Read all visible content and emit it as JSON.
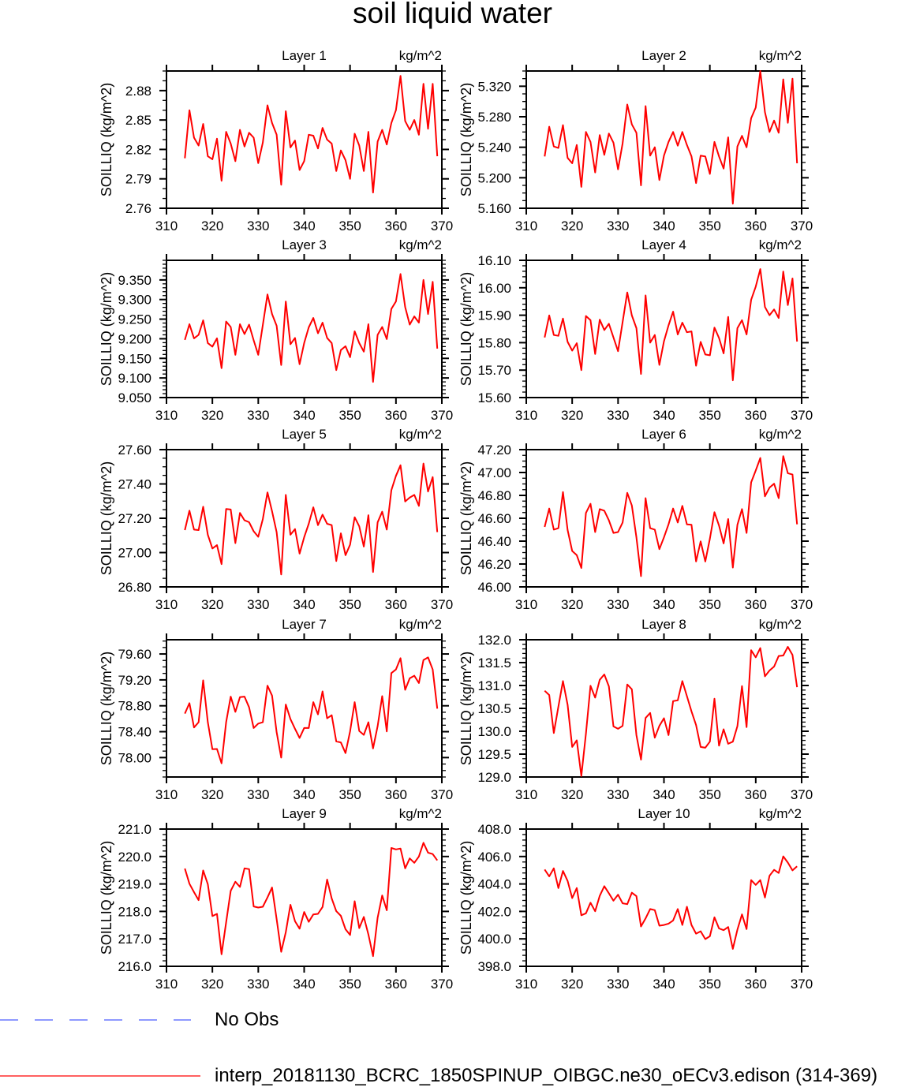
{
  "title": "soil liquid water",
  "legend": {
    "items": [
      {
        "label": "No Obs",
        "color": "#4a5cff",
        "style": "dashed"
      },
      {
        "label": "interp_20181130_BCRC_1850SPINUP_OIBGC.ne30_oECv3.edison (314-369)",
        "color": "#ff0000",
        "style": "solid"
      }
    ]
  },
  "chart_data": [
    {
      "type": "line",
      "title": "Layer 1",
      "units": "kg/m^2",
      "ylabel": "SOILLIQ  (kg/m^2)",
      "xlim": [
        310,
        370
      ],
      "xticks": [
        "310",
        "320",
        "330",
        "340",
        "350",
        "360",
        "370"
      ],
      "ylim": [
        2.76,
        2.9
      ],
      "yticks": [
        "2.76",
        "2.79",
        "2.82",
        "2.85",
        "2.88"
      ],
      "yminor": 0.01,
      "x_start": 314,
      "values": [
        2.811,
        2.86,
        2.832,
        2.824,
        2.846,
        2.813,
        2.81,
        2.831,
        2.788,
        2.838,
        2.826,
        2.808,
        2.84,
        2.823,
        2.837,
        2.832,
        2.806,
        2.827,
        2.865,
        2.847,
        2.835,
        2.784,
        2.859,
        2.822,
        2.829,
        2.799,
        2.808,
        2.835,
        2.834,
        2.821,
        2.842,
        2.83,
        2.826,
        2.798,
        2.819,
        2.809,
        2.79,
        2.836,
        2.824,
        2.798,
        2.838,
        2.776,
        2.828,
        2.84,
        2.825,
        2.847,
        2.86,
        2.895,
        2.849,
        2.84,
        2.85,
        2.835,
        2.887,
        2.841,
        2.887,
        2.813
      ]
    },
    {
      "type": "line",
      "title": "Layer 2",
      "units": "kg/m^2",
      "ylabel": "SOILLIQ  (kg/m^2)",
      "xlim": [
        310,
        370
      ],
      "xticks": [
        "310",
        "320",
        "330",
        "340",
        "350",
        "360",
        "370"
      ],
      "ylim": [
        5.16,
        5.34
      ],
      "yticks": [
        "5.160",
        "5.200",
        "5.240",
        "5.280",
        "5.320"
      ],
      "yminor": 0.01,
      "x_start": 314,
      "values": [
        5.228,
        5.267,
        5.241,
        5.239,
        5.269,
        5.226,
        5.219,
        5.243,
        5.188,
        5.26,
        5.247,
        5.207,
        5.256,
        5.23,
        5.258,
        5.246,
        5.211,
        5.245,
        5.296,
        5.27,
        5.259,
        5.19,
        5.294,
        5.229,
        5.24,
        5.197,
        5.229,
        5.247,
        5.26,
        5.242,
        5.26,
        5.243,
        5.228,
        5.193,
        5.229,
        5.228,
        5.205,
        5.247,
        5.228,
        5.212,
        5.253,
        5.166,
        5.241,
        5.255,
        5.24,
        5.278,
        5.292,
        5.34,
        5.286,
        5.26,
        5.275,
        5.259,
        5.329,
        5.272,
        5.33,
        5.219
      ]
    },
    {
      "type": "line",
      "title": "Layer 3",
      "units": "kg/m^2",
      "ylabel": "SOILLIQ  (kg/m^2)",
      "xlim": [
        310,
        370
      ],
      "xticks": [
        "310",
        "320",
        "330",
        "340",
        "350",
        "360",
        "370"
      ],
      "ylim": [
        9.05,
        9.4
      ],
      "yticks": [
        "9.050",
        "9.100",
        "9.150",
        "9.200",
        "9.250",
        "9.300",
        "9.350"
      ],
      "yminor": 0.01,
      "x_start": 314,
      "values": [
        9.197,
        9.237,
        9.201,
        9.21,
        9.247,
        9.189,
        9.18,
        9.201,
        9.125,
        9.244,
        9.23,
        9.159,
        9.237,
        9.212,
        9.236,
        9.196,
        9.159,
        9.235,
        9.313,
        9.263,
        9.233,
        9.133,
        9.295,
        9.186,
        9.202,
        9.135,
        9.189,
        9.229,
        9.253,
        9.214,
        9.241,
        9.202,
        9.189,
        9.12,
        9.171,
        9.181,
        9.153,
        9.219,
        9.189,
        9.167,
        9.237,
        9.09,
        9.21,
        9.23,
        9.199,
        9.276,
        9.295,
        9.365,
        9.281,
        9.236,
        9.257,
        9.241,
        9.35,
        9.263,
        9.345,
        9.175
      ]
    },
    {
      "type": "line",
      "title": "Layer 4",
      "units": "kg/m^2",
      "ylabel": "SOILLIQ  (kg/m^2)",
      "xlim": [
        310,
        370
      ],
      "xticks": [
        "310",
        "320",
        "330",
        "340",
        "350",
        "360",
        "370"
      ],
      "ylim": [
        15.6,
        16.1
      ],
      "yticks": [
        "15.60",
        "15.70",
        "15.80",
        "15.90",
        "16.00",
        "16.10"
      ],
      "yminor": 0.02,
      "x_start": 314,
      "values": [
        15.819,
        15.899,
        15.828,
        15.825,
        15.888,
        15.803,
        15.771,
        15.798,
        15.7,
        15.897,
        15.882,
        15.759,
        15.884,
        15.846,
        15.869,
        15.819,
        15.769,
        15.875,
        15.983,
        15.899,
        15.853,
        15.686,
        15.972,
        15.8,
        15.828,
        15.719,
        15.805,
        15.863,
        15.913,
        15.83,
        15.873,
        15.838,
        15.841,
        15.716,
        15.803,
        15.757,
        15.754,
        15.855,
        15.817,
        15.761,
        15.894,
        15.663,
        15.853,
        15.882,
        15.83,
        15.956,
        16.004,
        16.068,
        15.93,
        15.9,
        15.921,
        15.89,
        16.059,
        15.937,
        16.034,
        15.804
      ]
    },
    {
      "type": "line",
      "title": "Layer 5",
      "units": "kg/m^2",
      "ylabel": "SOILLIQ  (kg/m^2)",
      "xlim": [
        310,
        370
      ],
      "xticks": [
        "310",
        "320",
        "330",
        "340",
        "350",
        "360",
        "370"
      ],
      "ylim": [
        26.8,
        27.6
      ],
      "yticks": [
        "26.80",
        "27.00",
        "27.20",
        "27.40",
        "27.60"
      ],
      "yminor": 0.05,
      "x_start": 314,
      "values": [
        27.131,
        27.244,
        27.134,
        27.131,
        27.267,
        27.104,
        27.024,
        27.043,
        26.933,
        27.254,
        27.251,
        27.055,
        27.231,
        27.188,
        27.177,
        27.124,
        27.092,
        27.195,
        27.351,
        27.241,
        27.119,
        26.872,
        27.336,
        27.104,
        27.137,
        26.994,
        27.089,
        27.168,
        27.264,
        27.16,
        27.221,
        27.168,
        27.16,
        26.951,
        27.112,
        26.985,
        27.046,
        27.206,
        27.153,
        27.035,
        27.218,
        26.887,
        27.176,
        27.238,
        27.134,
        27.363,
        27.447,
        27.509,
        27.298,
        27.321,
        27.336,
        27.272,
        27.519,
        27.356,
        27.44,
        27.119
      ]
    },
    {
      "type": "line",
      "title": "Layer 6",
      "units": "kg/m^2",
      "ylabel": "SOILLIQ  (kg/m^2)",
      "xlim": [
        310,
        370
      ],
      "xticks": [
        "310",
        "320",
        "330",
        "340",
        "350",
        "360",
        "370"
      ],
      "ylim": [
        46.0,
        47.2
      ],
      "yticks": [
        "46.00",
        "46.20",
        "46.40",
        "46.60",
        "46.80",
        "47.00",
        "47.20"
      ],
      "yminor": 0.05,
      "x_start": 314,
      "values": [
        46.524,
        46.685,
        46.501,
        46.513,
        46.829,
        46.497,
        46.314,
        46.277,
        46.165,
        46.646,
        46.726,
        46.479,
        46.68,
        46.666,
        46.582,
        46.472,
        46.479,
        46.563,
        46.822,
        46.712,
        46.433,
        46.094,
        46.776,
        46.513,
        46.501,
        46.33,
        46.433,
        46.547,
        46.685,
        46.563,
        46.708,
        46.547,
        46.543,
        46.222,
        46.398,
        46.222,
        46.421,
        46.653,
        46.536,
        46.38,
        46.593,
        46.169,
        46.543,
        46.68,
        46.472,
        46.914,
        47.017,
        47.127,
        46.792,
        46.868,
        46.902,
        46.776,
        47.143,
        46.994,
        46.982,
        46.547
      ]
    },
    {
      "type": "line",
      "title": "Layer 7",
      "units": "kg/m^2",
      "ylabel": "SOILLIQ  (kg/m^2)",
      "xlim": [
        310,
        370
      ],
      "xticks": [
        "310",
        "320",
        "330",
        "340",
        "350",
        "360",
        "370"
      ],
      "ylim": [
        77.7,
        79.82
      ],
      "yticks": [
        "78.00",
        "78.40",
        "78.80",
        "79.20",
        "79.60"
      ],
      "yminor": 0.1,
      "x_start": 314,
      "values": [
        78.679,
        78.84,
        78.465,
        78.545,
        79.192,
        78.545,
        78.129,
        78.133,
        77.911,
        78.545,
        78.941,
        78.707,
        78.933,
        78.941,
        78.776,
        78.457,
        78.525,
        78.545,
        79.111,
        78.957,
        78.392,
        78.0,
        78.82,
        78.594,
        78.444,
        78.303,
        78.457,
        78.457,
        78.856,
        78.667,
        79.022,
        78.606,
        78.654,
        78.25,
        78.234,
        78.069,
        78.404,
        78.856,
        78.412,
        78.351,
        78.545,
        78.141,
        78.485,
        78.949,
        78.404,
        79.305,
        79.361,
        79.535,
        79.046,
        79.224,
        79.265,
        79.151,
        79.507,
        79.547,
        79.361,
        78.755
      ]
    },
    {
      "type": "line",
      "title": "Layer 8",
      "units": "kg/m^2",
      "ylabel": "SOILLIQ  (kg/m^2)",
      "xlim": [
        310,
        370
      ],
      "xticks": [
        "310",
        "320",
        "330",
        "340",
        "350",
        "360",
        "370"
      ],
      "ylim": [
        129.0,
        132.0
      ],
      "yticks": [
        "129.0",
        "129.5",
        "130.0",
        "130.5",
        "131.0",
        "131.5",
        "132.0"
      ],
      "yminor": 0.1,
      "x_start": 314,
      "values": [
        130.884,
        130.791,
        129.962,
        130.538,
        131.097,
        130.578,
        129.657,
        129.801,
        129.023,
        129.945,
        130.993,
        130.734,
        131.125,
        131.241,
        130.981,
        130.106,
        130.054,
        130.117,
        131.022,
        130.918,
        129.916,
        129.38,
        130.29,
        130.4,
        129.858,
        130.117,
        130.284,
        129.916,
        130.659,
        130.676,
        131.097,
        130.768,
        130.434,
        130.135,
        129.657,
        129.639,
        129.772,
        130.711,
        129.685,
        130.043,
        129.726,
        129.772,
        130.112,
        130.987,
        130.089,
        131.771,
        131.615,
        131.817,
        131.2,
        131.327,
        131.413,
        131.644,
        131.655,
        131.845,
        131.667,
        130.964
      ]
    },
    {
      "type": "line",
      "title": "Layer 9",
      "units": "kg/m^2",
      "ylabel": "SOILLIQ  (kg/m^2)",
      "xlim": [
        310,
        370
      ],
      "xticks": [
        "310",
        "320",
        "330",
        "340",
        "350",
        "360",
        "370"
      ],
      "ylim": [
        216.0,
        221.0
      ],
      "yticks": [
        "216.0",
        "217.0",
        "218.0",
        "219.0",
        "220.0",
        "221.0"
      ],
      "yminor": 0.2,
      "x_start": 314,
      "values": [
        219.56,
        219.01,
        218.7,
        218.41,
        219.49,
        218.99,
        217.83,
        217.91,
        216.44,
        217.6,
        218.75,
        219.08,
        218.89,
        219.57,
        219.54,
        218.18,
        218.14,
        218.17,
        218.51,
        218.87,
        217.72,
        216.53,
        217.24,
        218.24,
        217.64,
        217.37,
        217.98,
        217.62,
        217.89,
        217.91,
        218.16,
        219.16,
        218.47,
        218.01,
        217.84,
        217.35,
        217.14,
        218.37,
        217.39,
        217.8,
        217.16,
        216.37,
        217.77,
        218.58,
        218.04,
        220.31,
        220.26,
        220.29,
        219.57,
        219.93,
        219.77,
        220.0,
        220.5,
        220.14,
        220.09,
        219.86
      ]
    },
    {
      "type": "line",
      "title": "Layer 10",
      "units": "kg/m^2",
      "ylabel": "SOILLIQ  (kg/m^2)",
      "xlim": [
        310,
        370
      ],
      "xticks": [
        "310",
        "320",
        "330",
        "340",
        "350",
        "360",
        "370"
      ],
      "ylim": [
        398.0,
        408.0
      ],
      "yticks": [
        "398.0",
        "400.0",
        "402.0",
        "404.0",
        "406.0",
        "408.0"
      ],
      "yminor": 0.4,
      "x_start": 314,
      "values": [
        405.05,
        404.55,
        405.14,
        403.7,
        404.95,
        404.22,
        402.97,
        403.7,
        401.72,
        401.86,
        402.63,
        402.01,
        403.13,
        403.84,
        403.32,
        402.78,
        403.22,
        402.59,
        402.53,
        403.36,
        403.11,
        400.9,
        401.49,
        402.17,
        402.09,
        400.96,
        401.01,
        401.11,
        401.34,
        402.17,
        401.01,
        402.34,
        401.01,
        400.38,
        400.55,
        399.98,
        400.19,
        401.57,
        400.76,
        400.63,
        400.86,
        399.27,
        400.67,
        401.78,
        400.71,
        404.28,
        403.93,
        404.28,
        403.01,
        404.6,
        405.03,
        404.8,
        406.01,
        405.56,
        404.99,
        405.28
      ]
    }
  ]
}
